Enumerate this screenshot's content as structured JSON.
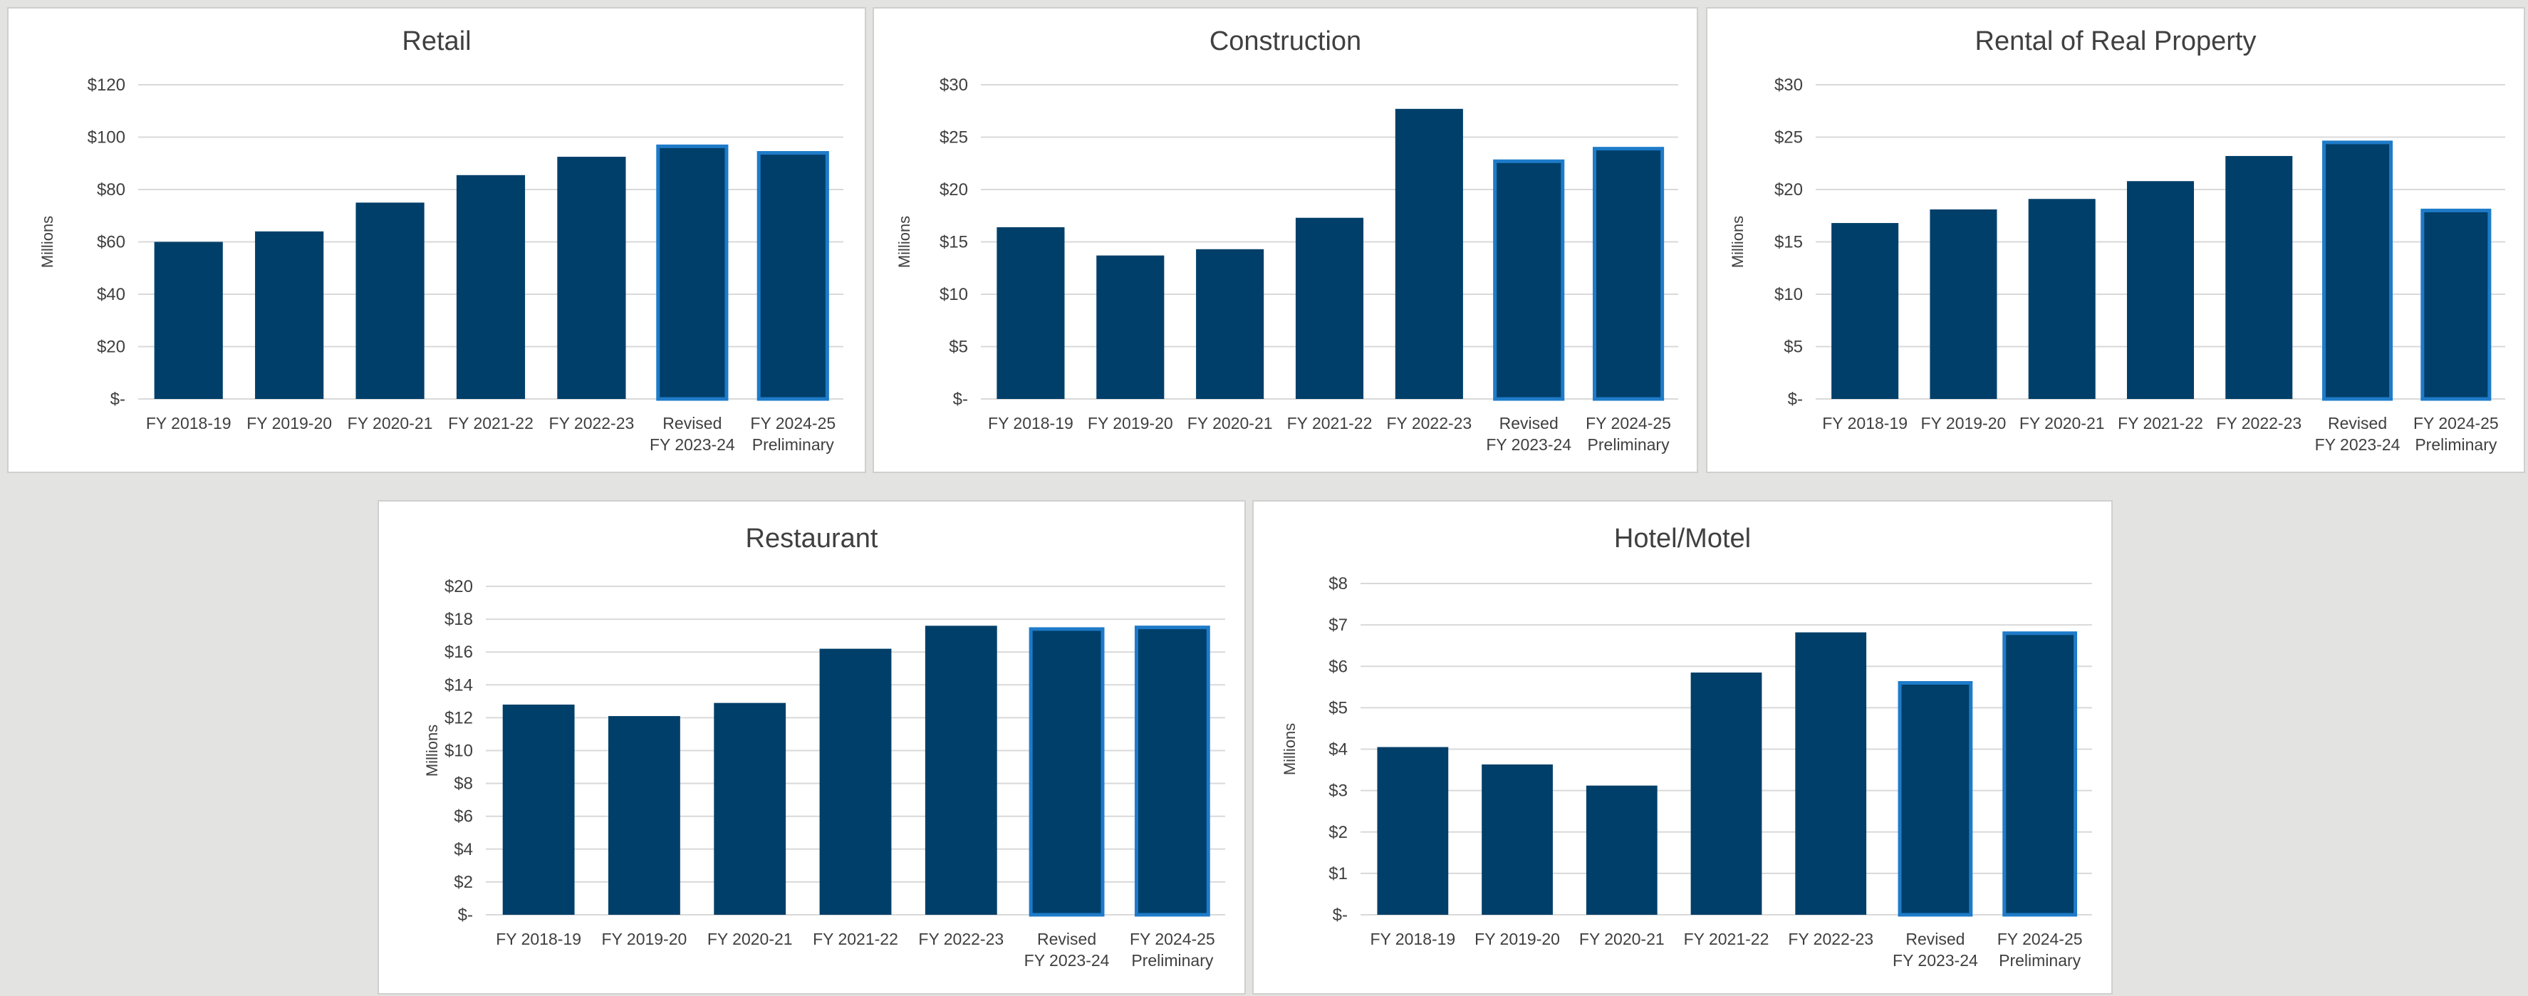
{
  "colors": {
    "bar_fill": "#003f69",
    "highlight_border": "#1e7bc9",
    "gridline": "#d9d9d9",
    "axis_text": "#3f3f3f",
    "title_text": "#404040"
  },
  "chart_data": [
    {
      "type": "bar",
      "title": "Retail",
      "ylabel": "Millions",
      "ylim": [
        0,
        120
      ],
      "yticks": [
        0,
        20,
        40,
        60,
        80,
        100,
        120
      ],
      "ytick_labels": [
        "$-",
        "$20",
        "$40",
        "$60",
        "$80",
        "$100",
        "$120"
      ],
      "categories": [
        [
          "FY 2018-19"
        ],
        [
          "FY 2019-20"
        ],
        [
          "FY 2020-21"
        ],
        [
          "FY 2021-22"
        ],
        [
          "FY 2022-23"
        ],
        [
          "Revised",
          "FY 2023-24"
        ],
        [
          "FY 2024-25",
          "Preliminary"
        ]
      ],
      "values": [
        60,
        64,
        75,
        85.5,
        92.5,
        96.5,
        94
      ],
      "highlighted": [
        false,
        false,
        false,
        false,
        false,
        true,
        true
      ],
      "grid": true,
      "legend": "none"
    },
    {
      "type": "bar",
      "title": "Construction",
      "ylabel": "Millions",
      "ylim": [
        0,
        30
      ],
      "yticks": [
        0,
        5,
        10,
        15,
        20,
        25,
        30
      ],
      "ytick_labels": [
        "$-",
        "$5",
        "$10",
        "$15",
        "$20",
        "$25",
        "$30"
      ],
      "categories": [
        [
          "FY 2018-19"
        ],
        [
          "FY 2019-20"
        ],
        [
          "FY 2020-21"
        ],
        [
          "FY 2021-22"
        ],
        [
          "FY 2022-23"
        ],
        [
          "Revised",
          "FY 2023-24"
        ],
        [
          "FY 2024-25",
          "Preliminary"
        ]
      ],
      "values": [
        16.4,
        13.7,
        14.3,
        17.3,
        27.7,
        22.7,
        23.9
      ],
      "highlighted": [
        false,
        false,
        false,
        false,
        false,
        true,
        true
      ],
      "grid": true,
      "legend": "none"
    },
    {
      "type": "bar",
      "title": "Rental of Real Property",
      "ylabel": "Millions",
      "ylim": [
        0,
        30
      ],
      "yticks": [
        0,
        5,
        10,
        15,
        20,
        25,
        30
      ],
      "ytick_labels": [
        "$-",
        "$5",
        "$10",
        "$15",
        "$20",
        "$25",
        "$30"
      ],
      "categories": [
        [
          "FY 2018-19"
        ],
        [
          "FY 2019-20"
        ],
        [
          "FY 2020-21"
        ],
        [
          "FY 2021-22"
        ],
        [
          "FY 2022-23"
        ],
        [
          "Revised",
          "FY 2023-24"
        ],
        [
          "FY 2024-25",
          "Preliminary"
        ]
      ],
      "values": [
        16.8,
        18.1,
        19.1,
        20.8,
        23.2,
        24.5,
        18
      ],
      "highlighted": [
        false,
        false,
        false,
        false,
        false,
        true,
        true
      ],
      "grid": true,
      "legend": "none"
    },
    {
      "type": "bar",
      "title": "Restaurant",
      "ylabel": "Millions",
      "ylim": [
        0,
        20
      ],
      "yticks": [
        0,
        2,
        4,
        6,
        8,
        10,
        12,
        14,
        16,
        18,
        20
      ],
      "ytick_labels": [
        "$-",
        "$2",
        "$4",
        "$6",
        "$8",
        "$10",
        "$12",
        "$14",
        "$16",
        "$18",
        "$20"
      ],
      "categories": [
        [
          "FY 2018-19"
        ],
        [
          "FY 2019-20"
        ],
        [
          "FY 2020-21"
        ],
        [
          "FY 2021-22"
        ],
        [
          "FY 2022-23"
        ],
        [
          "Revised",
          "FY 2023-24"
        ],
        [
          "FY 2024-25",
          "Preliminary"
        ]
      ],
      "values": [
        12.8,
        12.1,
        12.9,
        16.2,
        17.6,
        17.4,
        17.5
      ],
      "highlighted": [
        false,
        false,
        false,
        false,
        false,
        true,
        true
      ],
      "grid": true,
      "legend": "none"
    },
    {
      "type": "bar",
      "title": "Hotel/Motel",
      "ylabel": "Millions",
      "ylim": [
        0,
        8
      ],
      "yticks": [
        0,
        1,
        2,
        3,
        4,
        5,
        6,
        7,
        8
      ],
      "ytick_labels": [
        "$-",
        "$1",
        "$2",
        "$3",
        "$4",
        "$5",
        "$6",
        "$7",
        "$8"
      ],
      "categories": [
        [
          "FY 2018-19"
        ],
        [
          "FY 2019-20"
        ],
        [
          "FY 2020-21"
        ],
        [
          "FY 2021-22"
        ],
        [
          "FY 2022-23"
        ],
        [
          "Revised",
          "FY 2023-24"
        ],
        [
          "FY 2024-25",
          "Preliminary"
        ]
      ],
      "values": [
        4.05,
        3.63,
        3.12,
        5.85,
        6.82,
        5.6,
        6.8
      ],
      "highlighted": [
        false,
        false,
        false,
        false,
        false,
        true,
        true
      ],
      "grid": true,
      "legend": "none"
    }
  ]
}
